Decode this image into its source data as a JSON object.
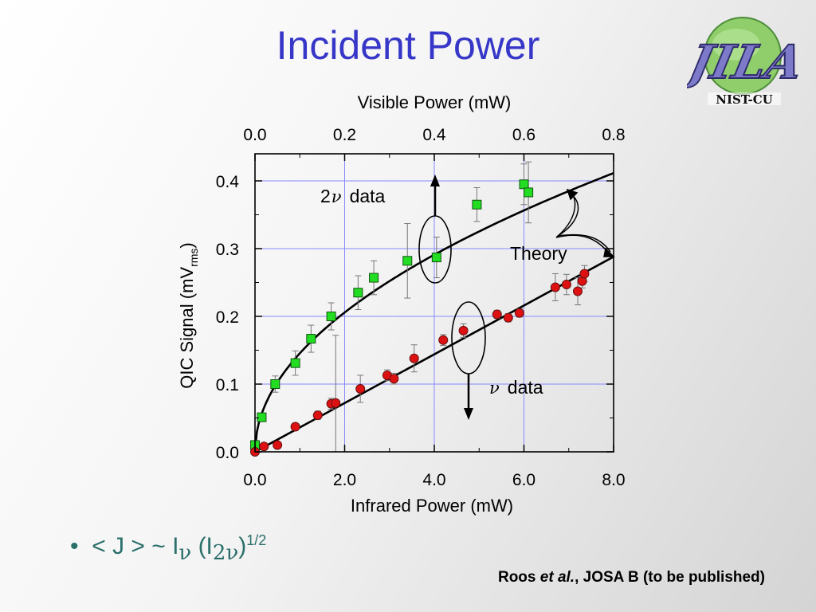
{
  "slide": {
    "title": "Incident Power",
    "logo_text": "NIST-CU",
    "logo_letters": "JILA",
    "bullet": {
      "marker": "•",
      "lhs": "< J > ~ I",
      "sub1": "ν",
      "paren_open": " (I",
      "sub2": "2ν",
      "paren_close": ")",
      "exponent": "1/2"
    },
    "citation": {
      "author": "Roos ",
      "etal": "et al.",
      "rest": ", JOSA B (to be published)"
    }
  },
  "chart_data": {
    "type": "scatter",
    "xlabel_bottom": "Infrared Power (mW)",
    "xlabel_top": "Visible Power (mW)",
    "ylabel_main": "QIC Signal (mV",
    "ylabel_sub": "rms",
    "ylabel_close": ")",
    "xlim": [
      0,
      8
    ],
    "ylim": [
      0,
      0.44
    ],
    "top_xlim": [
      0,
      0.8
    ],
    "x_ticks": [
      "0.0",
      "2.0",
      "4.0",
      "6.0",
      "8.0"
    ],
    "y_ticks": [
      "0.0",
      "0.1",
      "0.2",
      "0.3",
      "0.4"
    ],
    "top_ticks": [
      "0.0",
      "0.2",
      "0.4",
      "0.6",
      "0.8"
    ],
    "grid": true,
    "series": [
      {
        "name": "2ν data",
        "label_prefix": "2",
        "label_symbol": "ν",
        "label_suffix": "data",
        "marker": "square",
        "color": "#22dd22",
        "points": [
          [
            0.0,
            0.01,
            0.0
          ],
          [
            0.15,
            0.051,
            0.0
          ],
          [
            0.45,
            0.1,
            0.012
          ],
          [
            0.9,
            0.131,
            0.018
          ],
          [
            1.25,
            0.167,
            0.02
          ],
          [
            1.7,
            0.2,
            0.02
          ],
          [
            2.3,
            0.235,
            0.025
          ],
          [
            2.65,
            0.257,
            0.025
          ],
          [
            3.4,
            0.282,
            0.055
          ],
          [
            4.05,
            0.287,
            0.03
          ],
          [
            4.95,
            0.365,
            0.025
          ],
          [
            6.0,
            0.395,
            0.03
          ],
          [
            6.1,
            0.383,
            0.045
          ]
        ]
      },
      {
        "name": "ν data",
        "label_symbol": "ν",
        "label_suffix": "data",
        "marker": "circle",
        "color": "#dd1111",
        "points": [
          [
            0.0,
            0.0,
            0.0
          ],
          [
            0.2,
            0.008,
            0.0
          ],
          [
            0.5,
            0.01,
            0.0
          ],
          [
            0.9,
            0.037,
            0.005
          ],
          [
            1.4,
            0.054,
            0.006
          ],
          [
            1.7,
            0.071,
            0.008
          ],
          [
            1.8,
            0.072,
            0.1
          ],
          [
            2.35,
            0.093,
            0.02
          ],
          [
            2.95,
            0.113,
            0.008
          ],
          [
            3.1,
            0.108,
            0.008
          ],
          [
            3.55,
            0.138,
            0.02
          ],
          [
            4.2,
            0.165,
            0.008
          ],
          [
            4.65,
            0.179,
            0.01
          ],
          [
            5.4,
            0.203,
            0.006
          ],
          [
            5.65,
            0.198,
            0.006
          ],
          [
            5.9,
            0.205,
            0.006
          ],
          [
            6.7,
            0.243,
            0.02
          ],
          [
            6.95,
            0.247,
            0.015
          ],
          [
            7.2,
            0.237,
            0.02
          ],
          [
            7.3,
            0.252,
            0.01
          ],
          [
            7.35,
            0.263,
            0.012
          ]
        ]
      }
    ],
    "theory_label": "Theory",
    "fits": [
      {
        "name": "2ν fit",
        "form": "a*sqrt(x)",
        "a": 0.1455
      },
      {
        "name": "ν fit",
        "form": "m*x",
        "m": 0.036
      }
    ]
  }
}
